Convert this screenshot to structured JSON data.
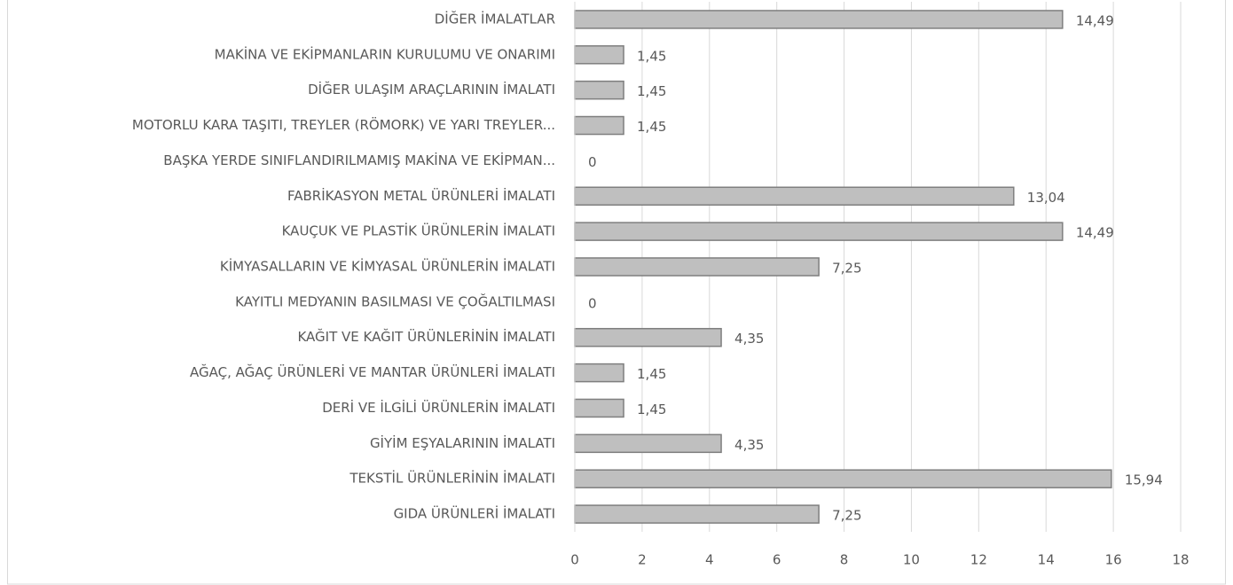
{
  "chart_data": {
    "type": "bar",
    "orientation": "horizontal",
    "categories": [
      "DİĞER İMALATLAR",
      "MAKİNA VE EKİPMANLARIN KURULUMU VE ONARIMI",
      "DİĞER ULAŞIM ARAÇLARININ İMALATI",
      "MOTORLU KARA TAŞITI, TREYLER (RÖMORK) VE YARI TREYLER...",
      "BAŞKA YERDE SINIFLANDIRILMAMIŞ MAKİNA VE EKİPMAN...",
      "FABRİKASYON METAL ÜRÜNLERİ İMALATI",
      "KAUÇUK VE PLASTİK ÜRÜNLERİN İMALATI",
      "KİMYASALLARIN VE KİMYASAL ÜRÜNLERİN İMALATI",
      "KAYITLI MEDYANIN BASILMASI VE ÇOĞALTILMASI",
      "KAĞIT VE KAĞIT ÜRÜNLERİNİN İMALATI",
      "AĞAÇ, AĞAÇ ÜRÜNLERİ VE MANTAR ÜRÜNLERİ İMALATI",
      "DERİ VE İLGİLİ ÜRÜNLERİN İMALATI",
      "GİYİM EŞYALARININ İMALATI",
      "TEKSTİL ÜRÜNLERİNİN İMALATI",
      "GIDA ÜRÜNLERİ İMALATI"
    ],
    "values": [
      14.49,
      1.45,
      1.45,
      1.45,
      0,
      13.04,
      14.49,
      7.25,
      0,
      4.35,
      1.45,
      1.45,
      4.35,
      15.94,
      7.25
    ],
    "value_labels": [
      "14,49",
      "1,45",
      "1,45",
      "1,45",
      "0",
      "13,04",
      "14,49",
      "7,25",
      "0",
      "4,35",
      "1,45",
      "1,45",
      "4,35",
      "15,94",
      "7,25"
    ],
    "color": "#bfbfbf",
    "xlim": [
      0,
      18
    ],
    "xticks": [
      0,
      2,
      4,
      6,
      8,
      10,
      12,
      14,
      16,
      18
    ],
    "grid": true
  }
}
